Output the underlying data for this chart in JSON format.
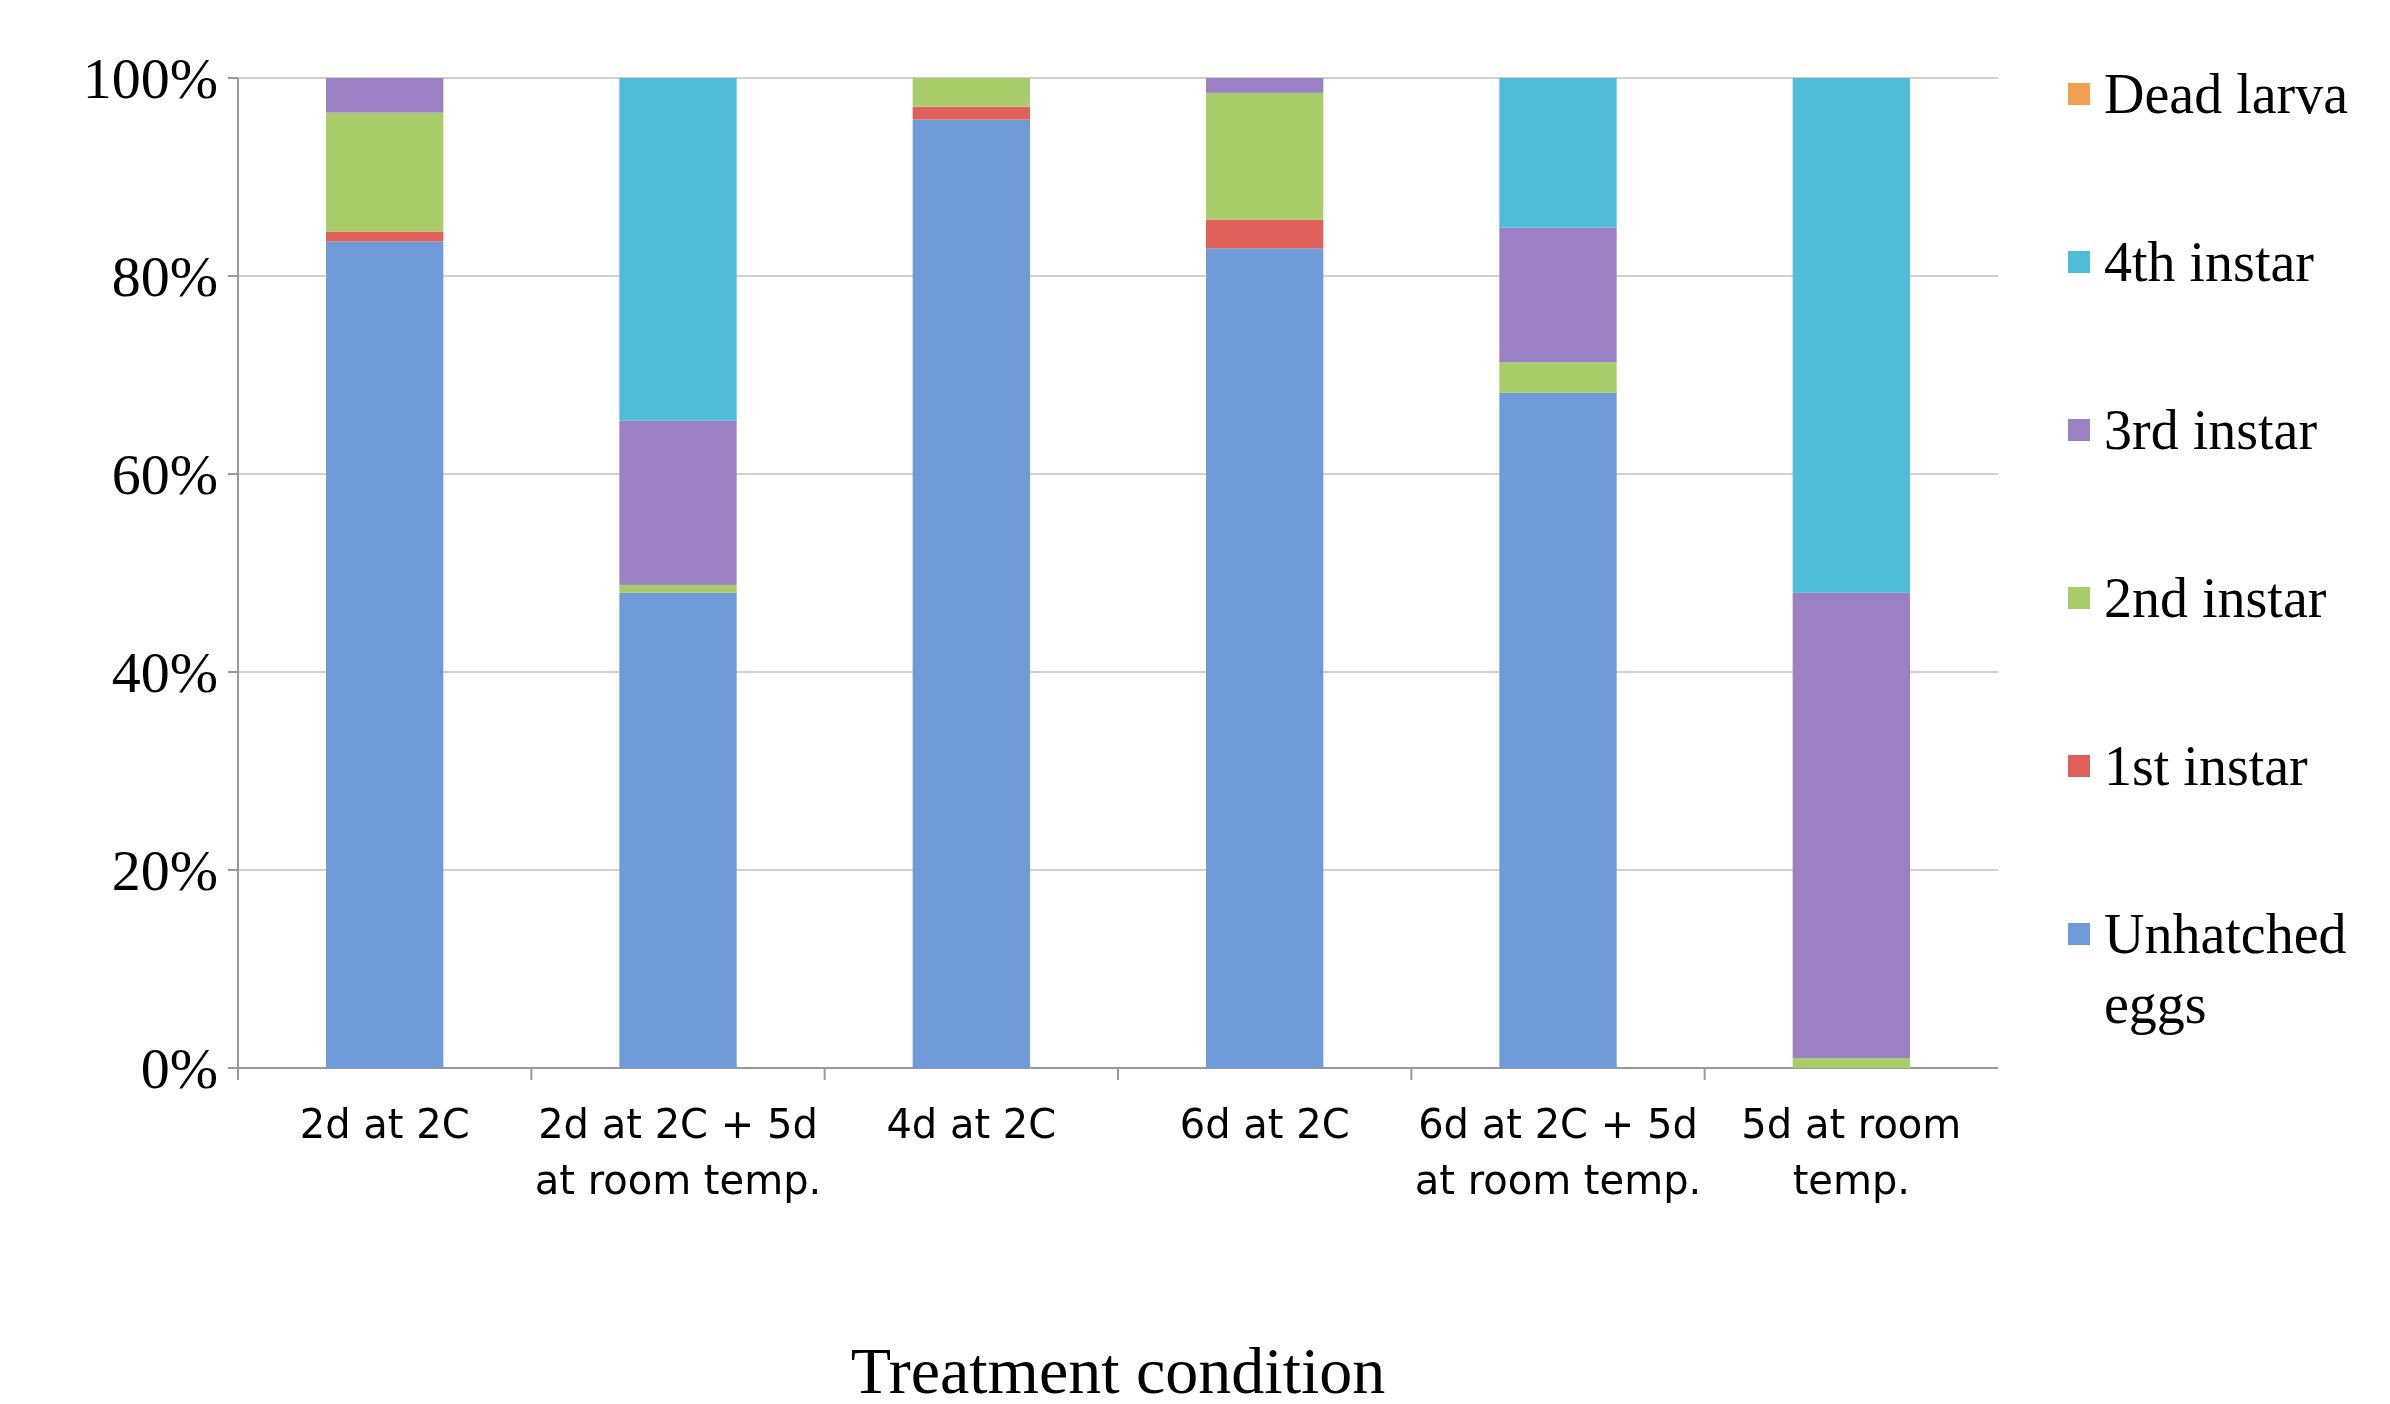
{
  "chart_data": {
    "type": "bar",
    "stacked": true,
    "xlabel": "Treatment condition",
    "categories": [
      "2d at 2C",
      "2d at 2C + 5d at room temp.",
      "4d at 2C",
      "6d at 2C",
      "6d at 2C + 5d at room temp.",
      "5d at room temp."
    ],
    "series": [
      {
        "name": "Unhatched eggs",
        "color": "#6f9bd8",
        "values": [
          83.5,
          48,
          95.8,
          82.8,
          68.2,
          0
        ]
      },
      {
        "name": "1st instar",
        "color": "#e0605a",
        "values": [
          1,
          0,
          1.3,
          2.9,
          0,
          0
        ]
      },
      {
        "name": "2nd instar",
        "color": "#a8cc6a",
        "values": [
          12,
          0.8,
          2.9,
          12.8,
          3.1,
          1
        ]
      },
      {
        "name": "3rd instar",
        "color": "#9c80c4",
        "values": [
          3.5,
          16.6,
          0,
          1.5,
          13.6,
          47
        ]
      },
      {
        "name": "4th instar",
        "color": "#4fbcd8",
        "values": [
          0,
          34.6,
          0,
          0,
          15.1,
          52
        ]
      },
      {
        "name": "Dead larva",
        "color": "#f0a050",
        "values": [
          0,
          0,
          0,
          0,
          0,
          0
        ]
      }
    ],
    "ylim": [
      0,
      100
    ],
    "yticks": [
      {
        "value": 0,
        "label": "0%"
      },
      {
        "value": 20,
        "label": "20%"
      },
      {
        "value": 40,
        "label": "40%"
      },
      {
        "value": 60,
        "label": "60%"
      },
      {
        "value": 80,
        "label": "80%"
      },
      {
        "value": 100,
        "label": "100%"
      }
    ],
    "grid": "y",
    "legend": "right"
  }
}
